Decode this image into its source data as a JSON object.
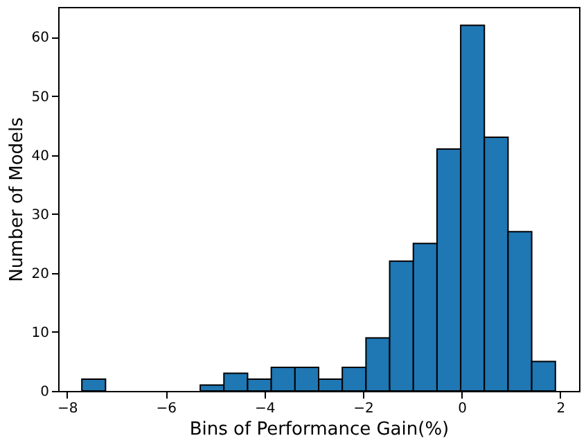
{
  "chart_data": {
    "type": "histogram",
    "xlabel": "Bins of Performance Gain(%)",
    "ylabel": "Number of Models",
    "bins": [
      -7.7,
      -7.22,
      -6.74,
      -6.26,
      -5.78,
      -5.3,
      -4.82,
      -4.34,
      -3.86,
      -3.38,
      -2.9,
      -2.42,
      -1.94,
      -1.46,
      -0.98,
      -0.5,
      -0.02,
      0.46,
      0.94,
      1.42,
      1.9
    ],
    "values": [
      2,
      0,
      0,
      0,
      0,
      1,
      3,
      2,
      4,
      4,
      2,
      4,
      9,
      22,
      25,
      41,
      62,
      43,
      27,
      5
    ],
    "color": "#1f77b4",
    "xlim": [
      -8.18,
      2.38
    ],
    "xticks": [
      -8,
      -6,
      -4,
      -2,
      0,
      2
    ],
    "ylim": [
      0,
      65.1
    ],
    "yticks": [
      0,
      10,
      20,
      30,
      40,
      50,
      60
    ],
    "grid": false
  }
}
